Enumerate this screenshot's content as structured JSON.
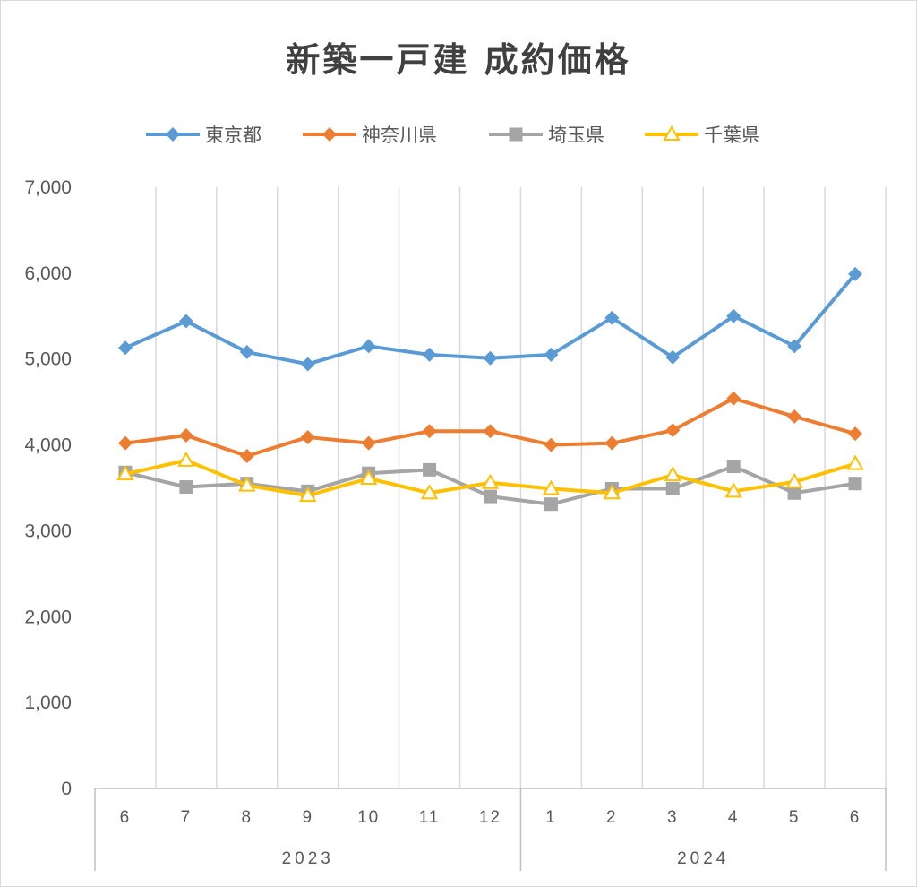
{
  "chart_data": {
    "type": "line",
    "title": "新築一戸建 成約価格",
    "xlabel": "",
    "ylabel": "",
    "ylim": [
      0,
      7000
    ],
    "y_ticks": [
      "0",
      "1,000",
      "2,000",
      "3,000",
      "4,000",
      "5,000",
      "6,000",
      "7,000"
    ],
    "y_tick_values": [
      0,
      1000,
      2000,
      3000,
      4000,
      5000,
      6000,
      7000
    ],
    "categories": [
      "6",
      "7",
      "8",
      "9",
      "10",
      "11",
      "12",
      "1",
      "2",
      "3",
      "4",
      "5",
      "6"
    ],
    "groups": [
      {
        "label": "2023",
        "count": 7
      },
      {
        "label": "2024",
        "count": 6
      }
    ],
    "grid": "vertical",
    "legend_position": "top",
    "series": [
      {
        "name": "東京都",
        "color": "#5b9bd5",
        "marker": "diamond",
        "values": [
          5130,
          5440,
          5080,
          4940,
          5150,
          5050,
          5010,
          5050,
          5480,
          5020,
          5500,
          5150,
          5990
        ]
      },
      {
        "name": "神奈川県",
        "color": "#ed7d31",
        "marker": "diamond",
        "values": [
          4020,
          4110,
          3870,
          4090,
          4020,
          4160,
          4160,
          4000,
          4020,
          4170,
          4540,
          4330,
          4130
        ]
      },
      {
        "name": "埼玉県",
        "color": "#a5a5a5",
        "marker": "square",
        "values": [
          3680,
          3510,
          3550,
          3460,
          3670,
          3710,
          3400,
          3310,
          3490,
          3490,
          3750,
          3440,
          3550
        ]
      },
      {
        "name": "千葉県",
        "color": "#ffc000",
        "marker": "triangle",
        "values": [
          3660,
          3820,
          3530,
          3410,
          3610,
          3440,
          3560,
          3490,
          3440,
          3650,
          3460,
          3570,
          3780
        ]
      }
    ]
  }
}
